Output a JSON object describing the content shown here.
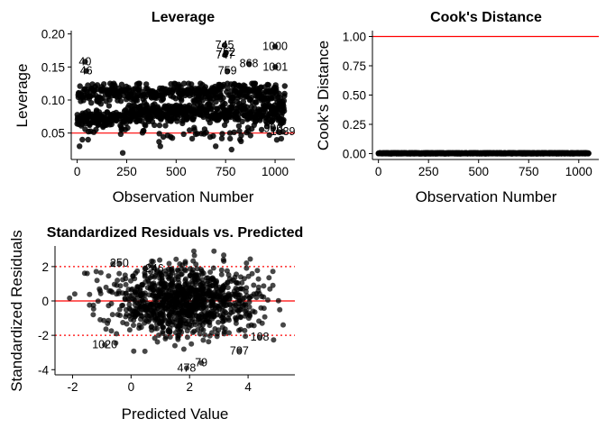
{
  "colors": {
    "points": "#000000",
    "reference": "#ff0000",
    "axis": "#000000"
  },
  "chart_data": [
    {
      "type": "scatter",
      "title": "Leverage",
      "xlabel": "Observation Number",
      "ylabel": "Leverage",
      "xlim": [
        -30,
        1100
      ],
      "ylim": [
        0.01,
        0.205
      ],
      "xticks": [
        "0",
        "250",
        "500",
        "750",
        "1000"
      ],
      "yticks": [
        "0.05",
        "0.10",
        "0.15",
        "0.20"
      ],
      "grid": false,
      "reference_line": {
        "y": 0.05,
        "color": "#ff0000",
        "style": "solid"
      },
      "labeled_points": [
        {
          "label": "745",
          "x": 745,
          "y": 0.183
        },
        {
          "label": "1000",
          "x": 1000,
          "y": 0.181
        },
        {
          "label": "752",
          "x": 752,
          "y": 0.172
        },
        {
          "label": "747",
          "x": 747,
          "y": 0.168
        },
        {
          "label": "40",
          "x": 40,
          "y": 0.158
        },
        {
          "label": "46",
          "x": 46,
          "y": 0.144
        },
        {
          "label": "759",
          "x": 759,
          "y": 0.144
        },
        {
          "label": "868",
          "x": 868,
          "y": 0.155
        },
        {
          "label": "1001",
          "x": 1001,
          "y": 0.15
        },
        {
          "label": "1039",
          "x": 1039,
          "y": 0.052
        },
        {
          "label": "990",
          "x": 990,
          "y": 0.057
        }
      ],
      "points": [
        {
          "x": 12,
          "y": 0.03
        },
        {
          "x": 55,
          "y": 0.04
        },
        {
          "x": 230,
          "y": 0.02
        },
        {
          "x": 780,
          "y": 0.025
        },
        {
          "x": 700,
          "y": 0.03
        },
        {
          "x": 420,
          "y": 0.03
        },
        {
          "x": 960,
          "y": 0.06
        },
        {
          "x": 100,
          "y": 0.1
        }
      ],
      "points_note": "about 1050 observations; every x in 0–1050"
    },
    {
      "type": "scatter",
      "title": "Cook's Distance",
      "xlabel": "Observation Number",
      "ylabel": "Cook's Distance",
      "xlim": [
        -30,
        1100
      ],
      "ylim": [
        -0.05,
        1.05
      ],
      "xticks": [
        "0",
        "250",
        "500",
        "750",
        "1000"
      ],
      "yticks": [
        "0.00",
        "0.25",
        "0.50",
        "0.75",
        "1.00"
      ],
      "grid": false,
      "reference_line": {
        "y": 1.0,
        "color": "#ff0000",
        "style": "solid"
      },
      "points_note": "about 1050 observations, all at Cook's distance ≈ 0.00"
    },
    {
      "type": "scatter",
      "title": "Standardized Residuals vs. Predicted",
      "xlabel": "Predicted Value",
      "ylabel": "Standardized Residuals",
      "xlim": [
        -2.6,
        5.6
      ],
      "ylim": [
        -4.3,
        3.2
      ],
      "xticks": [
        "-2",
        "0",
        "2",
        "4"
      ],
      "yticks": [
        "-4",
        "-2",
        "0",
        "2"
      ],
      "grid": false,
      "reference_lines": [
        {
          "y": 0,
          "color": "#ff0000",
          "style": "solid"
        },
        {
          "y": 2,
          "color": "#ff0000",
          "style": "dotted"
        },
        {
          "y": -2,
          "color": "#ff0000",
          "style": "dotted"
        }
      ],
      "labeled_points": [
        {
          "label": "1020",
          "x": -0.9,
          "y": -2.55
        },
        {
          "label": "246",
          "x": 0.8,
          "y": 1.9
        },
        {
          "label": "250",
          "x": -0.4,
          "y": 2.2
        },
        {
          "label": "108",
          "x": 4.4,
          "y": -2.1
        },
        {
          "label": "707",
          "x": 3.7,
          "y": -2.9
        },
        {
          "label": "478",
          "x": 1.9,
          "y": -3.9
        },
        {
          "label": "79",
          "x": 2.4,
          "y": -3.6
        }
      ],
      "points": [
        {
          "x": 1,
          "y": 0.5
        },
        {
          "x": -1.5,
          "y": 1.6
        },
        {
          "x": 3.9,
          "y": -0.6
        },
        {
          "x": 1.5,
          "y": -2.6
        },
        {
          "x": 2.2,
          "y": 1.1
        },
        {
          "x": 0.2,
          "y": -0.8
        },
        {
          "x": 4.2,
          "y": 0.4
        }
      ],
      "points_note": "about 1050 observations, roughly bivariate normal around predicted ≈ 1.8, residual ≈ 0"
    }
  ]
}
